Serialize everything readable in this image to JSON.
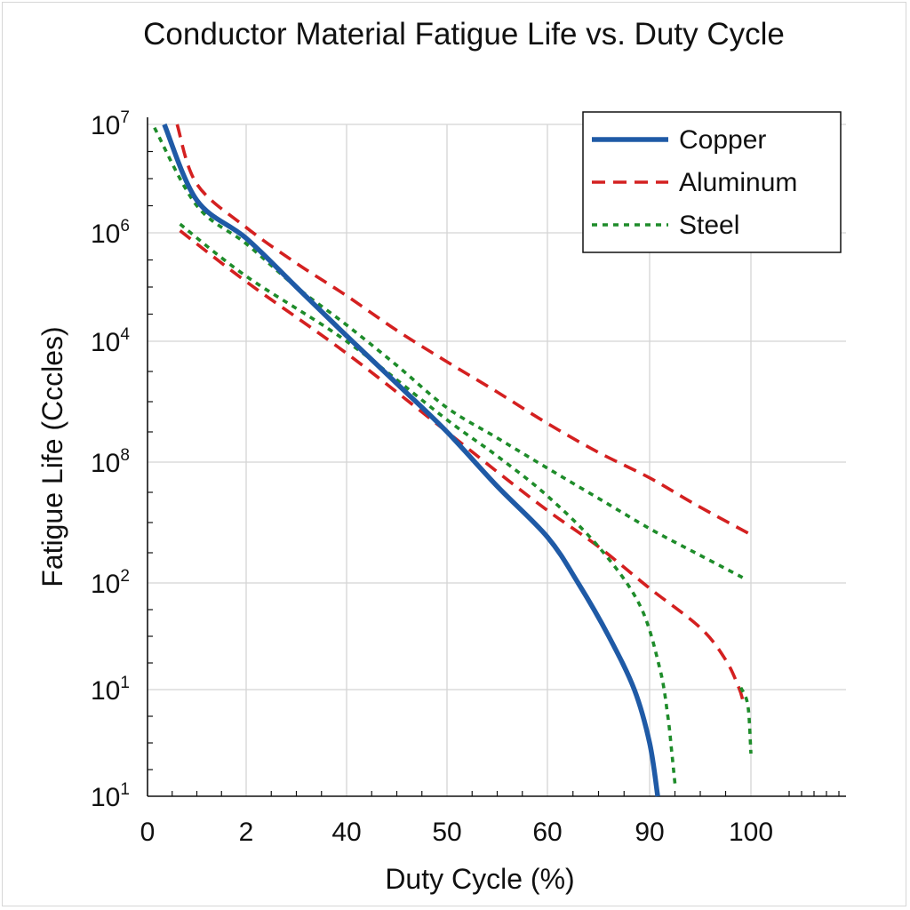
{
  "chart_data": {
    "type": "line",
    "title": "Conductor Material Fatigue Life vs. Duty Cycle",
    "xlabel": "Duty Cycle (%)",
    "ylabel": "Fatigue Life (Cccles)",
    "x_tick_labels": [
      "0",
      "2",
      "40",
      "50",
      "60",
      "90",
      "100"
    ],
    "y_tick_labels": [
      {
        "base": "10",
        "exp": "7"
      },
      {
        "base": "10",
        "exp": "6"
      },
      {
        "base": "10",
        "exp": "4"
      },
      {
        "base": "10",
        "exp": "8"
      },
      {
        "base": "10",
        "exp": "2"
      },
      {
        "base": "10",
        "exp": "1"
      },
      {
        "base": "10",
        "exp": "1"
      }
    ],
    "x_index_range": [
      0,
      6
    ],
    "y_index_range": [
      0,
      6
    ],
    "grid": true,
    "legend_position": "top-right",
    "series": [
      {
        "name": "Copper",
        "color": "#1f5aa6",
        "style": "solid",
        "points": [
          [
            0.17,
            0.0
          ],
          [
            0.5,
            0.7
          ],
          [
            1.0,
            1.05
          ],
          [
            1.5,
            1.5
          ],
          [
            2.0,
            1.95
          ],
          [
            2.5,
            2.35
          ],
          [
            3.0,
            2.75
          ],
          [
            3.5,
            3.2
          ],
          [
            4.0,
            3.62
          ],
          [
            4.3,
            4.0
          ],
          [
            4.6,
            4.5
          ],
          [
            4.85,
            5.0
          ],
          [
            5.0,
            5.5
          ],
          [
            5.08,
            6.0
          ]
        ]
      },
      {
        "name": "Aluminum",
        "color": "#d42020",
        "style": "dashed",
        "points": [
          [
            0.3,
            0.0
          ],
          [
            0.5,
            0.55
          ],
          [
            1.0,
            0.95
          ],
          [
            1.5,
            1.28
          ],
          [
            2.0,
            1.58
          ],
          [
            2.5,
            1.9
          ],
          [
            3.0,
            2.17
          ],
          [
            3.5,
            2.42
          ],
          [
            4.0,
            2.68
          ],
          [
            4.5,
            2.92
          ],
          [
            5.0,
            3.13
          ],
          [
            5.45,
            3.35
          ],
          [
            6.0,
            3.6
          ]
        ]
      },
      {
        "name": "Aluminum",
        "color": "#d42020",
        "style": "dashed",
        "points": [
          [
            0.33,
            0.98
          ],
          [
            1.0,
            1.45
          ],
          [
            2.0,
            2.1
          ],
          [
            3.0,
            2.75
          ],
          [
            3.5,
            3.08
          ],
          [
            4.0,
            3.4
          ],
          [
            4.5,
            3.7
          ],
          [
            5.0,
            4.05
          ],
          [
            5.5,
            4.42
          ],
          [
            5.75,
            4.72
          ],
          [
            5.88,
            4.98
          ],
          [
            5.92,
            5.1
          ]
        ]
      },
      {
        "name": "Steel",
        "color": "#1e8c2a",
        "style": "dotted",
        "points": [
          [
            0.07,
            0.03
          ],
          [
            0.5,
            0.75
          ],
          [
            1.0,
            1.1
          ],
          [
            1.5,
            1.5
          ],
          [
            2.0,
            1.85
          ],
          [
            2.5,
            2.2
          ],
          [
            3.0,
            2.55
          ],
          [
            3.5,
            2.8
          ],
          [
            4.0,
            3.05
          ],
          [
            4.5,
            3.3
          ],
          [
            5.0,
            3.55
          ],
          [
            5.45,
            3.75
          ],
          [
            5.93,
            3.96
          ]
        ]
      },
      {
        "name": "Steel",
        "color": "#1e8c2a",
        "style": "dotted",
        "points": [
          [
            0.33,
            0.92
          ],
          [
            1.0,
            1.4
          ],
          [
            2.0,
            2.0
          ],
          [
            3.0,
            2.65
          ],
          [
            3.5,
            2.95
          ],
          [
            4.0,
            3.28
          ],
          [
            4.5,
            3.7
          ],
          [
            4.9,
            4.2
          ],
          [
            5.1,
            4.8
          ],
          [
            5.18,
            5.25
          ],
          [
            5.22,
            5.6
          ],
          [
            5.25,
            5.88
          ]
        ]
      },
      {
        "name": "Steel",
        "color": "#1e8c2a",
        "style": "dotted",
        "points": [
          [
            5.9,
            4.98
          ],
          [
            5.97,
            5.15
          ],
          [
            6.0,
            5.6
          ]
        ]
      }
    ],
    "legend": [
      {
        "label": "Copper",
        "color": "#1f5aa6",
        "style": "solid"
      },
      {
        "label": "Aluminum",
        "color": "#d42020",
        "style": "dashed"
      },
      {
        "label": "Steel",
        "color": "#1e8c2a",
        "style": "dotted"
      }
    ]
  }
}
